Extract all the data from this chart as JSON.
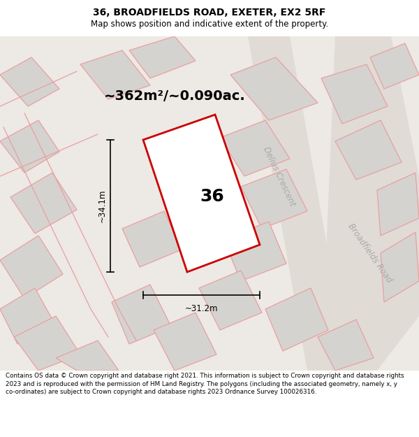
{
  "title": "36, BROADFIELDS ROAD, EXETER, EX2 5RF",
  "subtitle": "Map shows position and indicative extent of the property.",
  "area_text": "~362m²/~0.090ac.",
  "dim_v": "~34.1m",
  "dim_h": "~31.2m",
  "number_label": "36",
  "footer": "Contains OS data © Crown copyright and database right 2021. This information is subject to Crown copyright and database rights 2023 and is reproduced with the permission of HM Land Registry. The polygons (including the associated geometry, namely x, y co-ordinates) are subject to Crown copyright and database rights 2023 Ordnance Survey 100026316.",
  "street1": "Delius Crescent",
  "street2": "Broadfields Road",
  "map_bg": "#ede9e4",
  "property_color": "#cc0000",
  "other_fill": "#d5d3d0",
  "other_stroke": "#e8a0a0",
  "road_color": "#e0dbd5",
  "street_label_color": "#aaaaaa",
  "title_fontsize": 10,
  "subtitle_fontsize": 8.5,
  "area_fontsize": 14,
  "number_fontsize": 18,
  "dim_fontsize": 8.5,
  "footer_fontsize": 6.3
}
